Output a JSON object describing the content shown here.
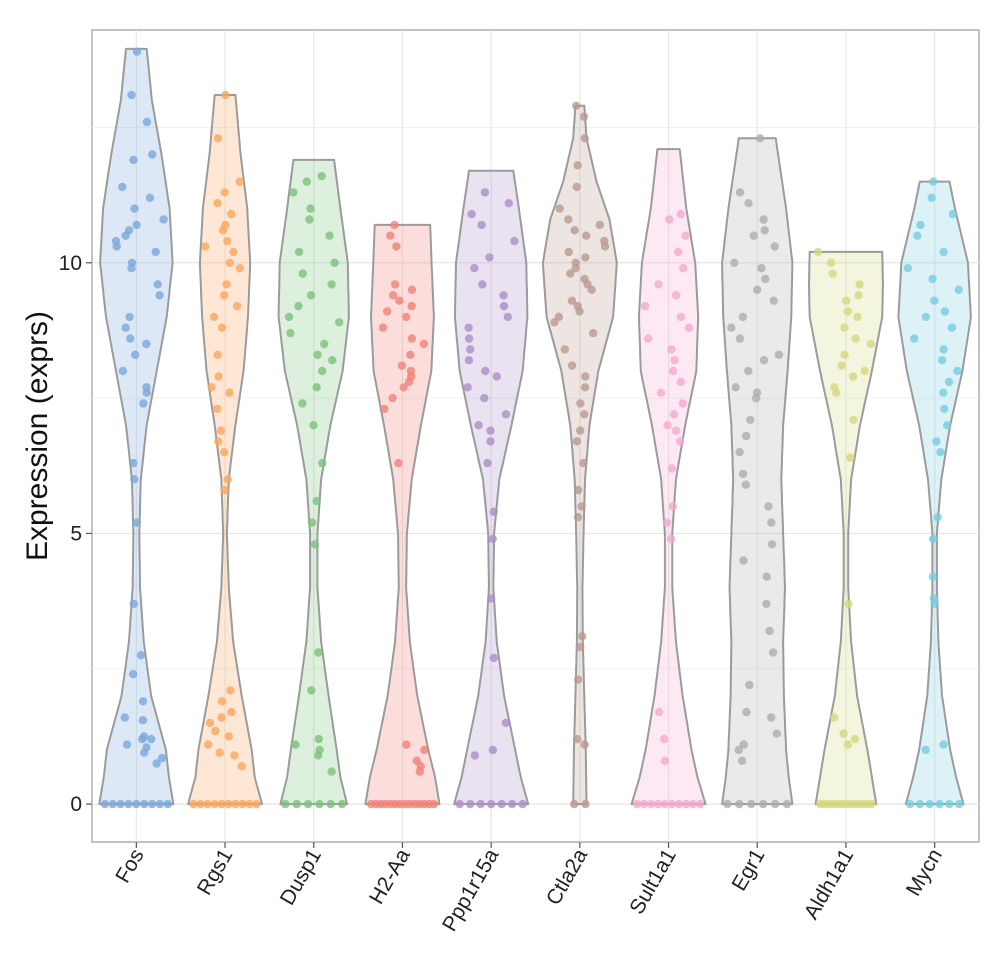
{
  "chart_data": {
    "type": "violin",
    "title": "",
    "xlabel": "",
    "ylabel": "Expression (exprs)",
    "ylim": [
      -0.7,
      14.3
    ],
    "yticks": [
      0,
      5,
      10
    ],
    "grid": true,
    "legend": "none",
    "series": [
      {
        "name": "Fos",
        "color": "#7BA7DC",
        "max": 13.95,
        "density": [
          [
            0,
            1.0
          ],
          [
            0.5,
            0.88
          ],
          [
            1,
            0.8
          ],
          [
            2,
            0.4
          ],
          [
            3,
            0.2
          ],
          [
            4,
            0.1
          ],
          [
            5,
            0.08
          ],
          [
            6,
            0.12
          ],
          [
            7,
            0.28
          ],
          [
            8,
            0.55
          ],
          [
            9,
            0.82
          ],
          [
            10,
            0.98
          ],
          [
            11,
            0.9
          ],
          [
            12,
            0.68
          ],
          [
            13,
            0.42
          ],
          [
            13.95,
            0.28
          ]
        ],
        "zeros": 9,
        "points": [
          0.95,
          1.1,
          1.2,
          0.85,
          1.55,
          1.25,
          1.6,
          0.75,
          1.05,
          1.2,
          1.9,
          2.4,
          2.75,
          3.7,
          5.2,
          6.0,
          6.3,
          7.4,
          7.6,
          7.7,
          8.0,
          8.3,
          8.5,
          8.6,
          8.8,
          9.0,
          9.4,
          9.6,
          9.9,
          10.0,
          10.2,
          10.3,
          10.4,
          10.5,
          10.6,
          10.7,
          10.8,
          11.0,
          11.2,
          11.4,
          11.9,
          12.0,
          12.6,
          13.1,
          13.9
        ]
      },
      {
        "name": "Rgs1",
        "color": "#FDA55C",
        "max": 13.1,
        "density": [
          [
            0,
            1.0
          ],
          [
            0.5,
            0.8
          ],
          [
            1,
            0.72
          ],
          [
            2,
            0.45
          ],
          [
            3,
            0.22
          ],
          [
            4,
            0.1
          ],
          [
            5,
            0.05
          ],
          [
            6,
            0.1
          ],
          [
            7,
            0.28
          ],
          [
            8,
            0.5
          ],
          [
            9,
            0.62
          ],
          [
            10,
            0.68
          ],
          [
            11,
            0.6
          ],
          [
            12,
            0.42
          ],
          [
            13.1,
            0.28
          ]
        ],
        "zeros": 10,
        "points": [
          0.7,
          0.9,
          1.1,
          1.25,
          1.5,
          1.7,
          1.9,
          2.1,
          1.35,
          0.95,
          1.6,
          5.8,
          6.0,
          6.5,
          6.7,
          6.9,
          7.3,
          7.6,
          7.7,
          7.9,
          8.3,
          8.8,
          9.0,
          9.2,
          9.4,
          9.6,
          9.9,
          10.0,
          10.2,
          10.3,
          10.4,
          10.6,
          10.7,
          10.9,
          11.1,
          11.3,
          11.5,
          12.3,
          13.1
        ]
      },
      {
        "name": "Dusp1",
        "color": "#7CC17A",
        "max": 11.9,
        "density": [
          [
            0,
            0.9
          ],
          [
            0.5,
            0.72
          ],
          [
            1,
            0.62
          ],
          [
            2,
            0.4
          ],
          [
            3,
            0.2
          ],
          [
            4,
            0.1
          ],
          [
            5,
            0.1
          ],
          [
            6,
            0.2
          ],
          [
            7,
            0.45
          ],
          [
            8,
            0.78
          ],
          [
            9,
            0.95
          ],
          [
            10,
            0.92
          ],
          [
            11,
            0.72
          ],
          [
            11.9,
            0.55
          ]
        ],
        "zeros": 6,
        "points": [
          0.6,
          0.9,
          1.1,
          1.2,
          1.0,
          2.1,
          2.8,
          4.8,
          5.2,
          5.6,
          6.3,
          7.0,
          7.4,
          7.7,
          8.0,
          8.2,
          8.3,
          8.5,
          8.7,
          8.9,
          9.0,
          9.2,
          9.4,
          9.6,
          9.8,
          10.0,
          10.2,
          10.5,
          10.8,
          11.0,
          11.3,
          11.5,
          11.6
        ]
      },
      {
        "name": "H2-Aa",
        "color": "#F08178",
        "max": 10.7,
        "density": [
          [
            0,
            1.0
          ],
          [
            0.5,
            0.88
          ],
          [
            1,
            0.7
          ],
          [
            2,
            0.4
          ],
          [
            3,
            0.2
          ],
          [
            4,
            0.1
          ],
          [
            5,
            0.12
          ],
          [
            6,
            0.25
          ],
          [
            7,
            0.5
          ],
          [
            8,
            0.78
          ],
          [
            9,
            0.85
          ],
          [
            9.8,
            0.8
          ],
          [
            10.7,
            0.75
          ]
        ],
        "zeros": 14,
        "points": [
          0.6,
          0.8,
          1.0,
          1.1,
          0.7,
          6.3,
          7.3,
          7.5,
          7.7,
          7.8,
          7.9,
          8.0,
          8.1,
          8.3,
          8.5,
          8.6,
          8.8,
          9.0,
          9.1,
          9.2,
          9.3,
          9.4,
          9.5,
          9.6,
          10.3,
          10.5,
          10.7
        ]
      },
      {
        "name": "Ppp1r15a",
        "color": "#AB8FC8",
        "max": 11.7,
        "density": [
          [
            0,
            1.0
          ],
          [
            0.5,
            0.8
          ],
          [
            1,
            0.65
          ],
          [
            2,
            0.35
          ],
          [
            3,
            0.15
          ],
          [
            4,
            0.06
          ],
          [
            5,
            0.08
          ],
          [
            6,
            0.22
          ],
          [
            7,
            0.55
          ],
          [
            8,
            0.85
          ],
          [
            9,
            0.98
          ],
          [
            10,
            0.95
          ],
          [
            11,
            0.75
          ],
          [
            11.7,
            0.6
          ]
        ],
        "zeros": 7,
        "points": [
          0.9,
          1.0,
          1.5,
          2.7,
          3.8,
          4.9,
          5.4,
          6.3,
          6.7,
          6.9,
          7.0,
          7.2,
          7.5,
          7.7,
          7.9,
          8.0,
          8.2,
          8.4,
          8.6,
          8.8,
          9.0,
          9.2,
          9.4,
          9.6,
          9.9,
          10.1,
          10.4,
          10.7,
          10.9,
          11.1,
          11.3
        ]
      },
      {
        "name": "Ctla2a",
        "color": "#B99A8F",
        "max": 12.9,
        "density": [
          [
            0,
            0.18
          ],
          [
            1,
            0.16
          ],
          [
            2,
            0.12
          ],
          [
            3,
            0.08
          ],
          [
            4,
            0.07
          ],
          [
            5,
            0.1
          ],
          [
            6,
            0.14
          ],
          [
            7,
            0.26
          ],
          [
            8,
            0.5
          ],
          [
            9,
            0.9
          ],
          [
            10,
            1.0
          ],
          [
            10.8,
            0.8
          ],
          [
            11.5,
            0.45
          ],
          [
            12.3,
            0.18
          ],
          [
            12.9,
            0.12
          ]
        ],
        "zeros": 2,
        "points": [
          1.1,
          1.2,
          2.3,
          2.9,
          3.1,
          5.3,
          5.5,
          5.8,
          6.3,
          6.7,
          6.9,
          7.2,
          7.4,
          7.7,
          7.9,
          8.1,
          8.4,
          8.7,
          8.9,
          9.0,
          9.1,
          9.2,
          9.3,
          9.5,
          9.6,
          9.7,
          9.8,
          9.9,
          10.0,
          10.1,
          10.2,
          10.3,
          10.4,
          10.5,
          10.6,
          10.7,
          10.8,
          11.0,
          11.4,
          11.8,
          12.3,
          12.7,
          12.9
        ]
      },
      {
        "name": "Sult1a1",
        "color": "#F4A9CF",
        "max": 12.1,
        "density": [
          [
            0,
            1.0
          ],
          [
            0.5,
            0.78
          ],
          [
            1,
            0.62
          ],
          [
            2,
            0.38
          ],
          [
            3,
            0.2
          ],
          [
            4,
            0.1
          ],
          [
            5,
            0.1
          ],
          [
            6,
            0.2
          ],
          [
            7,
            0.45
          ],
          [
            8,
            0.75
          ],
          [
            9,
            0.8
          ],
          [
            10,
            0.72
          ],
          [
            11,
            0.48
          ],
          [
            12.1,
            0.3
          ]
        ],
        "zeros": 10,
        "points": [
          0.8,
          1.2,
          1.7,
          4.9,
          5.2,
          5.5,
          6.2,
          6.7,
          6.9,
          7.0,
          7.2,
          7.4,
          7.6,
          7.8,
          8.0,
          8.2,
          8.4,
          8.6,
          8.8,
          9.0,
          9.2,
          9.4,
          9.6,
          9.9,
          10.2,
          10.5,
          10.8,
          10.9
        ]
      },
      {
        "name": "Egr1",
        "color": "#ADADAD",
        "max": 12.3,
        "density": [
          [
            0,
            0.95
          ],
          [
            0.5,
            0.85
          ],
          [
            1,
            0.78
          ],
          [
            2,
            0.72
          ],
          [
            3,
            0.7
          ],
          [
            4,
            0.75
          ],
          [
            5,
            0.7
          ],
          [
            6,
            0.65
          ],
          [
            7,
            0.7
          ],
          [
            8,
            0.82
          ],
          [
            9,
            0.92
          ],
          [
            10,
            0.95
          ],
          [
            11,
            0.78
          ],
          [
            12.3,
            0.5
          ]
        ],
        "zeros": 6,
        "points": [
          0.8,
          1.0,
          1.1,
          1.3,
          1.6,
          1.7,
          2.2,
          2.8,
          3.2,
          3.7,
          4.2,
          4.5,
          4.8,
          5.2,
          5.5,
          5.9,
          6.1,
          6.5,
          6.8,
          7.1,
          7.5,
          7.6,
          7.7,
          8.0,
          8.2,
          8.3,
          8.6,
          8.8,
          9.0,
          9.3,
          9.5,
          9.7,
          9.9,
          10.0,
          10.3,
          10.5,
          10.6,
          10.8,
          11.1,
          11.3,
          12.3
        ]
      },
      {
        "name": "Aldh1a1",
        "color": "#D6D77E",
        "max": 10.2,
        "density": [
          [
            0,
            0.82
          ],
          [
            0.5,
            0.7
          ],
          [
            1,
            0.58
          ],
          [
            2,
            0.3
          ],
          [
            3,
            0.14
          ],
          [
            4,
            0.06
          ],
          [
            5,
            0.06
          ],
          [
            6,
            0.14
          ],
          [
            7,
            0.38
          ],
          [
            8,
            0.7
          ],
          [
            9,
            0.98
          ],
          [
            9.6,
            1.0
          ],
          [
            10.2,
            0.98
          ]
        ],
        "zeros": 12,
        "points": [
          1.1,
          1.2,
          1.3,
          1.6,
          3.7,
          6.4,
          7.1,
          7.6,
          7.7,
          7.9,
          8.0,
          8.1,
          8.3,
          8.5,
          8.6,
          8.8,
          9.0,
          9.1,
          9.3,
          9.4,
          9.6,
          9.8,
          10.0,
          10.2
        ]
      },
      {
        "name": "Mycn",
        "color": "#76CDE0",
        "max": 11.5,
        "density": [
          [
            0,
            0.78
          ],
          [
            0.5,
            0.58
          ],
          [
            1,
            0.42
          ],
          [
            2,
            0.2
          ],
          [
            3,
            0.1
          ],
          [
            4,
            0.06
          ],
          [
            5,
            0.06
          ],
          [
            6,
            0.18
          ],
          [
            7,
            0.42
          ],
          [
            8,
            0.75
          ],
          [
            9,
            0.98
          ],
          [
            10,
            0.9
          ],
          [
            11,
            0.55
          ],
          [
            11.5,
            0.4
          ]
        ],
        "zeros": 6,
        "points": [
          1.0,
          1.1,
          3.7,
          3.8,
          4.2,
          4.9,
          5.3,
          6.5,
          6.7,
          7.0,
          7.3,
          7.6,
          7.8,
          8.0,
          8.2,
          8.4,
          8.6,
          8.8,
          9.0,
          9.1,
          9.3,
          9.5,
          9.7,
          9.9,
          10.2,
          10.5,
          10.7,
          10.9,
          11.2,
          11.5
        ]
      }
    ]
  }
}
